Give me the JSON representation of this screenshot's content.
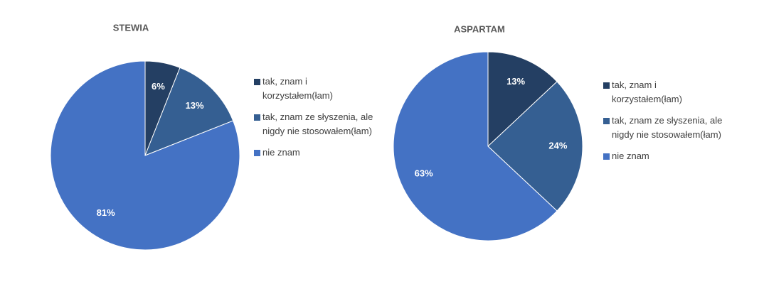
{
  "chart_data": [
    {
      "type": "pie",
      "title": "STEWIA",
      "categories": [
        "tak, znam i korzystałem(łam)",
        "tak, znam ze słyszenia, ale nigdy nie stosowałem(łam)",
        "nie znam"
      ],
      "values": [
        6,
        13,
        81
      ],
      "value_labels": [
        "6%",
        "13%",
        "81%"
      ],
      "colors": [
        "#243f63",
        "#355f92",
        "#4472c4"
      ]
    },
    {
      "type": "pie",
      "title": "ASPARTAM",
      "categories": [
        "tak, znam i korzystałem(łam)",
        "tak, znam ze słyszenia, ale nigdy nie stosowałem(łam)",
        "nie znam"
      ],
      "values": [
        13,
        24,
        63
      ],
      "value_labels": [
        "13%",
        "24%",
        "63%"
      ],
      "colors": [
        "#243f63",
        "#355f92",
        "#4472c4"
      ]
    }
  ]
}
